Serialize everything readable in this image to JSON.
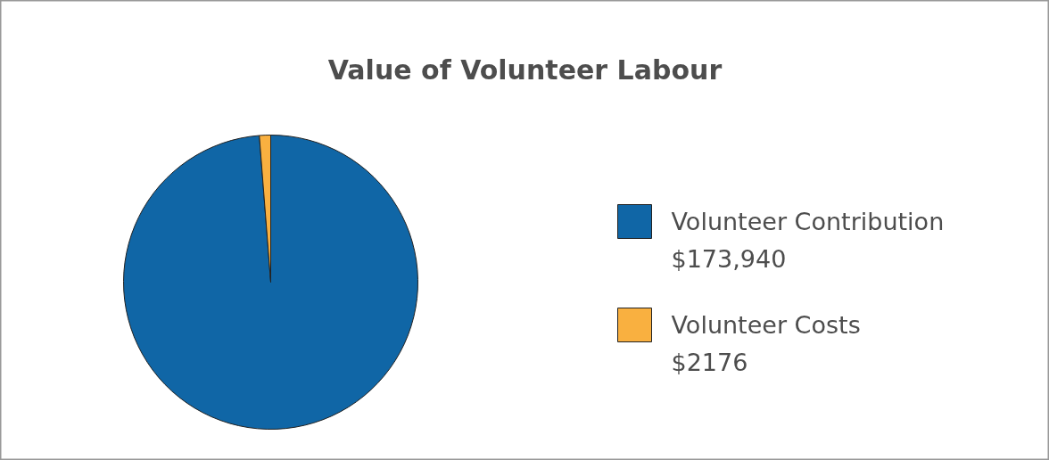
{
  "chart_data": {
    "type": "pie",
    "title": "Value of Volunteer Labour",
    "categories": [
      "Volunteer Contribution",
      "Volunteer Costs"
    ],
    "values": [
      173940,
      2176
    ],
    "colors": [
      "#1066a6",
      "#f9b040"
    ],
    "value_labels": [
      "$173,940",
      "$2176"
    ],
    "legend": "right"
  }
}
